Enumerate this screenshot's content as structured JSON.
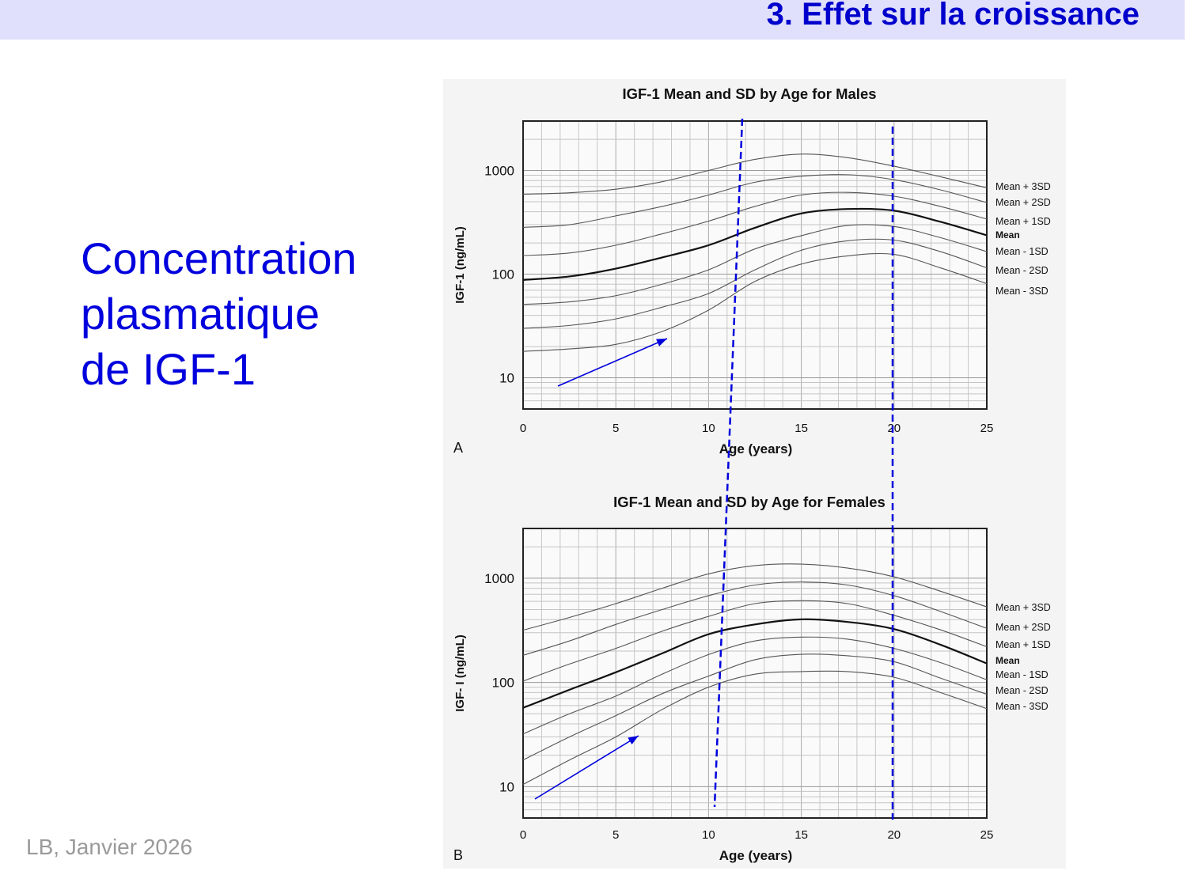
{
  "header": {
    "title": "3. Effet sur la croissance"
  },
  "subject": {
    "lines": [
      "Concentration",
      "plasmatique",
      "de IGF-1"
    ]
  },
  "footer": {
    "text": "LB, Janvier 2026"
  },
  "colors": {
    "header_bg": "#e0e0fc",
    "title": "#0000cc",
    "annotation": "#0000dd",
    "panel_bg": "#f4f4f4"
  },
  "annotations": {
    "description_icons": [
      "dashed-vertical-line-age-11",
      "dashed-vertical-line-age-20",
      "arrow-male",
      "arrow-female"
    ]
  },
  "chart_data": [
    {
      "type": "line",
      "panel_letter": "A",
      "title": "IGF-1 Mean and SD by Age for Males",
      "xlabel": "Age (years)",
      "ylabel": "IGF-1 (ng/mL)",
      "x_ticks": [
        0,
        5,
        10,
        15,
        20,
        25
      ],
      "y_ticks": [
        10,
        100,
        1000
      ],
      "xlim": [
        0,
        25
      ],
      "ylim": [
        5,
        3000
      ],
      "y_scale": "log",
      "grid": true,
      "legend": "right",
      "x": [
        0,
        2.5,
        5,
        7.5,
        10,
        12.5,
        15,
        17.5,
        20,
        22.5,
        25
      ],
      "series": [
        {
          "name": "Mean + 3SD",
          "values": [
            590,
            610,
            660,
            780,
            1000,
            1280,
            1440,
            1330,
            1100,
            870,
            680
          ]
        },
        {
          "name": "Mean + 2SD",
          "values": [
            283,
            300,
            365,
            450,
            580,
            770,
            880,
            910,
            815,
            650,
            490
          ]
        },
        {
          "name": "Mean + 1SD",
          "values": [
            151,
            160,
            190,
            245,
            325,
            450,
            580,
            615,
            565,
            450,
            340
          ]
        },
        {
          "name": "Mean",
          "values": [
            88,
            95,
            113,
            145,
            190,
            280,
            385,
            425,
            410,
            320,
            237
          ]
        },
        {
          "name": "Mean - 1SD",
          "values": [
            51,
            54,
            62,
            80,
            110,
            175,
            235,
            295,
            288,
            225,
            165
          ]
        },
        {
          "name": "Mean - 2SD",
          "values": [
            30,
            32,
            37,
            48,
            65,
            110,
            170,
            210,
            213,
            165,
            115
          ]
        },
        {
          "name": "Mean - 3SD",
          "values": [
            18,
            19,
            21,
            28,
            45,
            85,
            125,
            150,
            155,
            115,
            81
          ]
        }
      ]
    },
    {
      "type": "line",
      "panel_letter": "B",
      "title": "IGF-1 Mean and SD by Age for Females",
      "xlabel": "Age (years)",
      "ylabel": "IGF- I (ng/mL)",
      "x_ticks": [
        0,
        5,
        10,
        15,
        20,
        25
      ],
      "y_ticks": [
        10,
        100,
        1000
      ],
      "xlim": [
        0,
        25
      ],
      "ylim": [
        5,
        3000
      ],
      "y_scale": "log",
      "grid": true,
      "legend": "right",
      "x": [
        0,
        2.5,
        5,
        7.5,
        10,
        12.5,
        15,
        17.5,
        20,
        22.5,
        25
      ],
      "series": [
        {
          "name": "Mean + 3SD",
          "values": [
            317,
            420,
            570,
            800,
            1100,
            1320,
            1365,
            1250,
            1030,
            750,
            530
          ]
        },
        {
          "name": "Mean + 2SD",
          "values": [
            182,
            250,
            360,
            500,
            680,
            860,
            920,
            860,
            680,
            480,
            330
          ]
        },
        {
          "name": "Mean + 1SD",
          "values": [
            103,
            150,
            212,
            310,
            430,
            570,
            608,
            570,
            440,
            320,
            220
          ]
        },
        {
          "name": "Mean",
          "values": [
            57,
            85,
            125,
            190,
            290,
            360,
            403,
            380,
            325,
            230,
            152
          ]
        },
        {
          "name": "Mean - 1SD",
          "values": [
            32,
            50,
            74,
            120,
            185,
            250,
            272,
            260,
            212,
            155,
            106
          ]
        },
        {
          "name": "Mean - 2SD",
          "values": [
            18,
            30,
            48,
            78,
            115,
            165,
            186,
            180,
            158,
            110,
            77
          ]
        },
        {
          "name": "Mean - 3SD",
          "values": [
            10.5,
            18,
            30,
            55,
            90,
            120,
            127,
            127,
            112,
            80,
            56
          ]
        }
      ]
    }
  ]
}
